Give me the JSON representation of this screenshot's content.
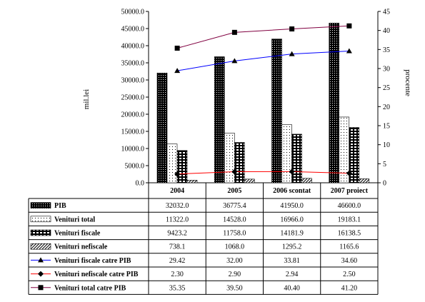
{
  "chart_data": {
    "type": "bar",
    "categories": [
      "2004",
      "2005",
      "2006 scontat",
      "2007 proiect"
    ],
    "ylabel": "mil.lei",
    "y2label": "procente",
    "ylim": [
      0,
      50000
    ],
    "y2lim": [
      0,
      45
    ],
    "y_ticks": [
      "0.0",
      "5000.0",
      "10000.0",
      "15000.0",
      "20000.0",
      "25000.0",
      "30000.0",
      "35000.0",
      "40000.0",
      "45000.0",
      "50000.0"
    ],
    "y2_ticks": [
      "0",
      "5",
      "10",
      "15",
      "20",
      "25",
      "30",
      "35",
      "40",
      "45"
    ],
    "grid": false,
    "legend": "table-below",
    "series": [
      {
        "name": "PIB",
        "kind": "bar",
        "pattern": "dots-dark",
        "values": [
          32032.0,
          36775.4,
          41950.0,
          46600.0
        ],
        "labels": [
          "32032.0",
          "36775.4",
          "41950.0",
          "46600.0"
        ]
      },
      {
        "name": "Venituri total",
        "kind": "bar",
        "pattern": "dots-light",
        "values": [
          11322.0,
          14528.0,
          16966.0,
          19183.1
        ],
        "labels": [
          "11322.0",
          "14528.0",
          "16966.0",
          "19183.1"
        ]
      },
      {
        "name": "Venituri fiscale",
        "kind": "bar",
        "pattern": "grid",
        "values": [
          9423.2,
          11758.0,
          14181.9,
          16138.5
        ],
        "labels": [
          "9423.2",
          "11758.0",
          "14181.9",
          "16138.5"
        ]
      },
      {
        "name": "Venituri nefiscale",
        "kind": "bar",
        "pattern": "hatch",
        "values": [
          738.1,
          1068.0,
          1295.2,
          1165.6
        ],
        "labels": [
          "738.1",
          "1068.0",
          "1295.2",
          "1165.6"
        ]
      },
      {
        "name": "Venituri fiscale  catre PIB",
        "kind": "line",
        "axis": "right",
        "color": "#0000ff",
        "marker": "triangle",
        "values": [
          29.42,
          32.0,
          33.81,
          34.6
        ],
        "labels": [
          "29.42",
          "32.00",
          "33.81",
          "34.60"
        ]
      },
      {
        "name": "Venituri nefiscale  catre PIB",
        "kind": "line",
        "axis": "right",
        "color": "#ff0000",
        "marker": "diamond",
        "values": [
          2.3,
          2.9,
          2.94,
          2.5
        ],
        "labels": [
          "2.30",
          "2.90",
          "2.94",
          "2.50"
        ]
      },
      {
        "name": "Venituri total catre PIB",
        "kind": "line",
        "axis": "right",
        "color": "#800040",
        "marker": "square",
        "values": [
          35.35,
          39.5,
          40.4,
          41.2
        ],
        "labels": [
          "35.35",
          "39.50",
          "40.40",
          "41.20"
        ]
      }
    ]
  }
}
